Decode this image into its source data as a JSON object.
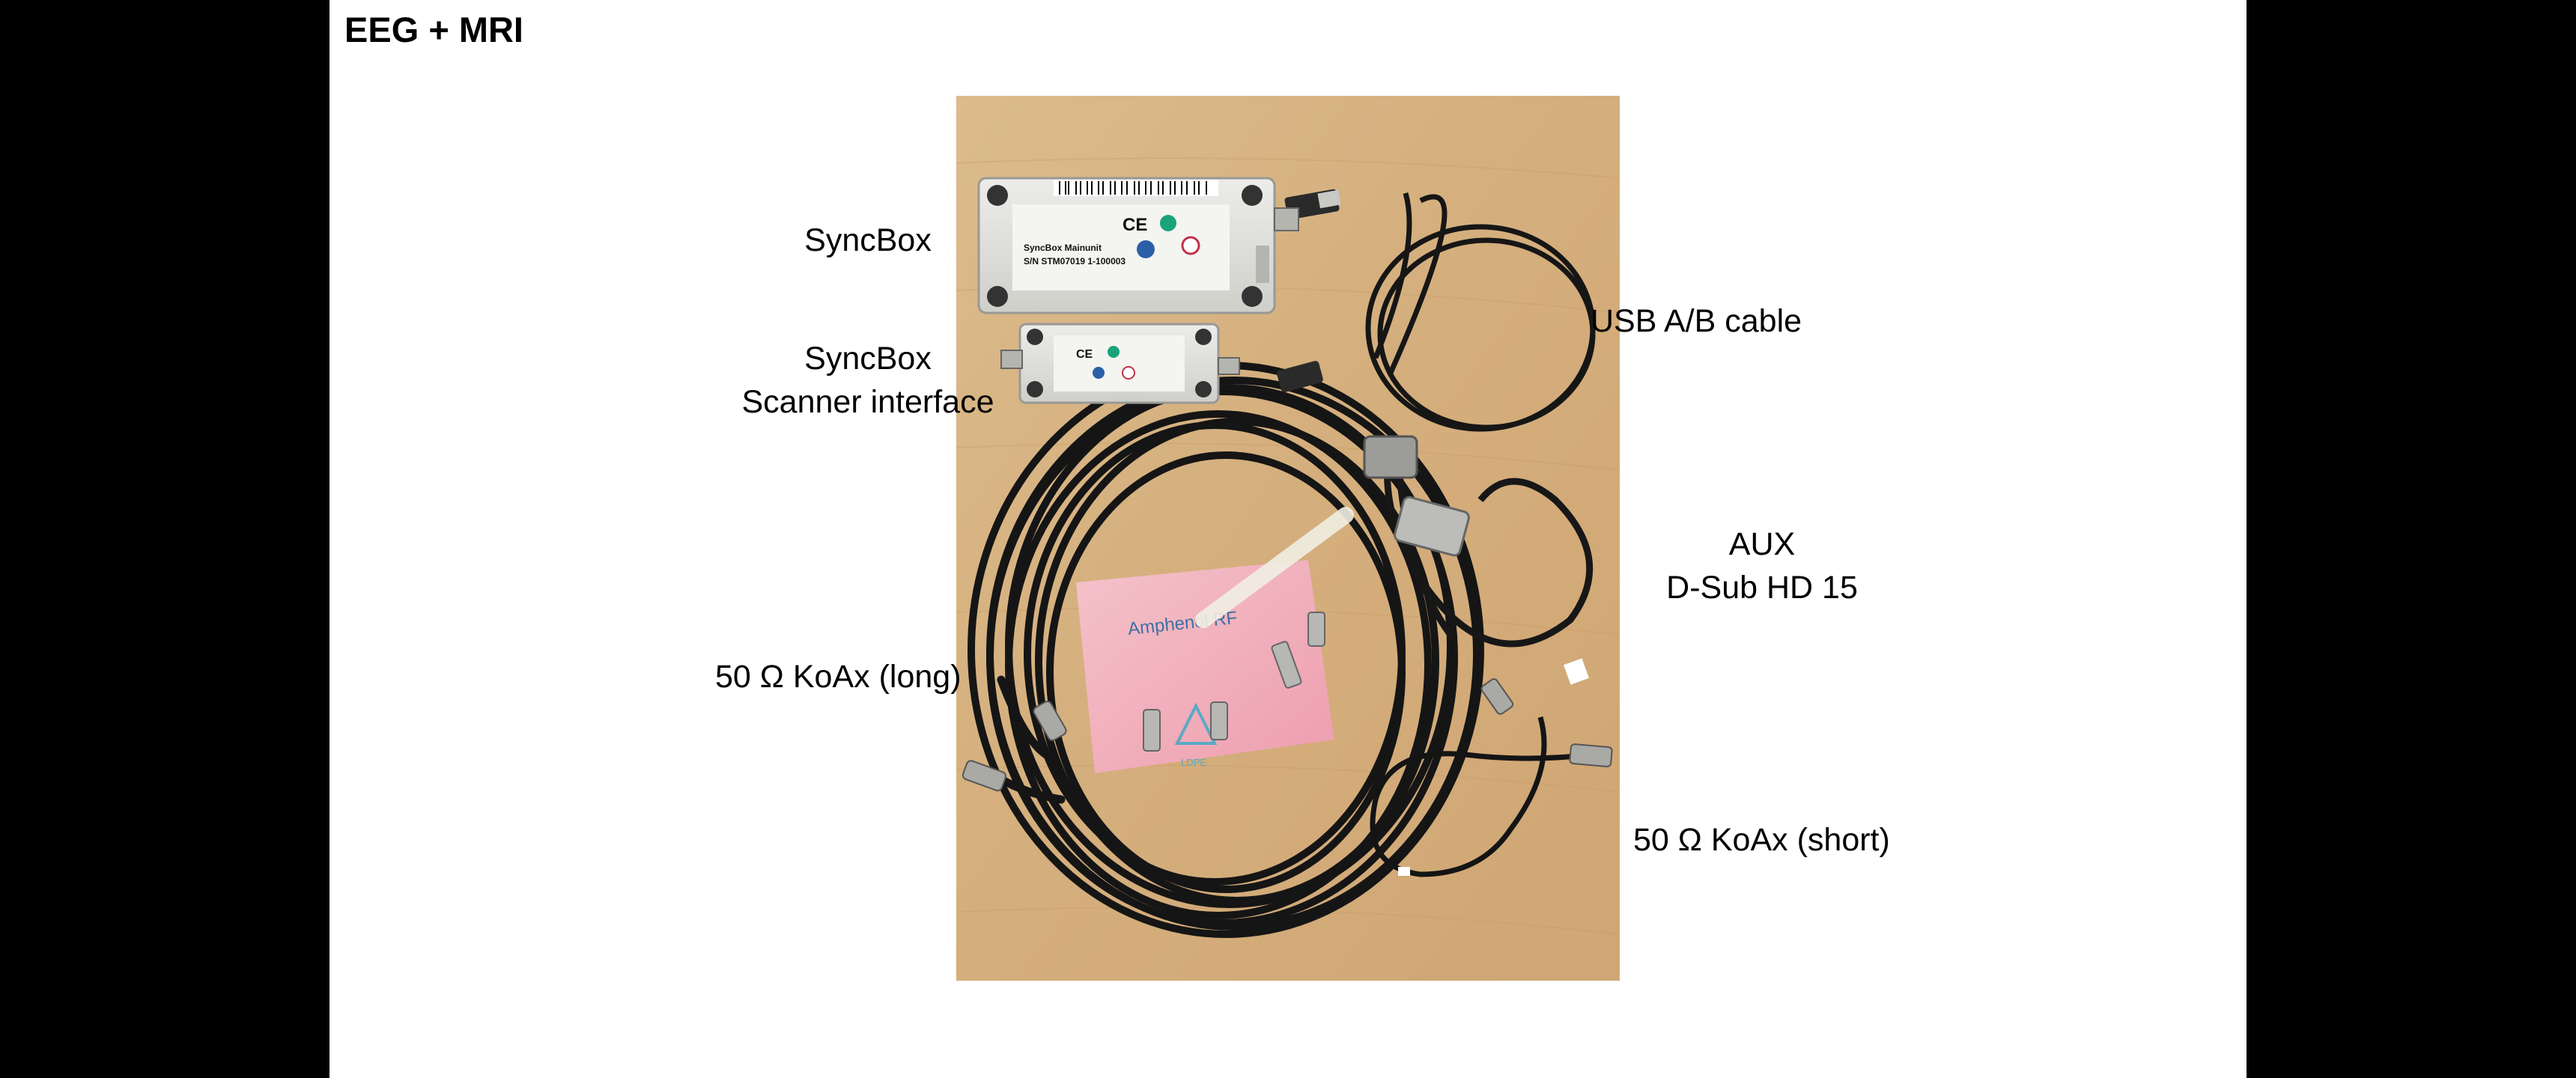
{
  "slide": {
    "title": "EEG + MRI"
  },
  "labels": {
    "syncbox": "SyncBox",
    "syncbox_scanner_line1": "SyncBox",
    "syncbox_scanner_line2": "Scanner interface",
    "usb_cable": "USB A/B cable",
    "aux_line1": "AUX",
    "aux_line2": "D-Sub HD 15",
    "koax_long": "50 Ω KoAx (long)",
    "koax_short": "50 Ω KoAx (short)"
  },
  "photo": {
    "device_main": {
      "model": "SyncBox Mainunit",
      "serial": "S/N STM07019 1-100003"
    },
    "bag_text": "Amphenol RF",
    "bag_recycle_text": "LDPE"
  },
  "colors": {
    "background": "#000000",
    "slide": "#ffffff",
    "wood": "#d9b685",
    "cable": "#141414",
    "device": "#e3e3df",
    "bag": "#f4b3c4"
  }
}
